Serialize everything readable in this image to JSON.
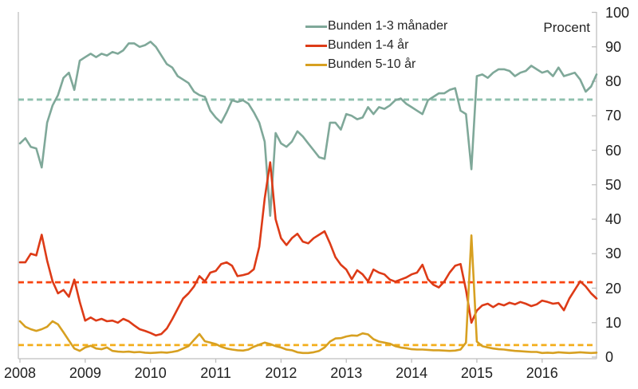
{
  "axis_label": "Procent",
  "chart_data": {
    "type": "line",
    "title": "",
    "xlabel": "",
    "ylabel": "Procent",
    "x_start": "2008-01",
    "x_end": "2016-11",
    "x_tick_labels": [
      "2008",
      "2009",
      "2010",
      "2011",
      "2012",
      "2013",
      "2014",
      "2015",
      "2016"
    ],
    "y_ticks": [
      0,
      10,
      20,
      30,
      40,
      50,
      60,
      70,
      80,
      90,
      100
    ],
    "ylim": [
      0,
      100
    ],
    "grid": false,
    "legend_position": "top-center-inside",
    "series": [
      {
        "name": "Bunden 1-3 månader",
        "color": "#7fa899",
        "values": [
          62,
          63.5,
          61,
          60.5,
          55,
          68,
          73,
          76,
          81,
          82.5,
          77.5,
          86,
          87,
          88,
          87,
          88,
          87.5,
          88.5,
          88,
          89,
          91,
          91,
          90,
          90.5,
          91.5,
          90,
          87.5,
          85,
          84,
          81.5,
          80.5,
          79.5,
          77,
          76,
          75.5,
          71.5,
          69.5,
          68,
          71,
          74.5,
          74,
          74.5,
          73.5,
          71,
          68,
          62.5,
          41,
          65,
          62,
          61,
          62.5,
          65.5,
          64,
          62,
          60,
          58,
          57.5,
          68,
          68,
          66,
          70.5,
          70,
          69,
          69.5,
          72.5,
          70.5,
          72.5,
          72,
          73,
          74.5,
          75,
          73.5,
          72.5,
          71.5,
          70.5,
          74.5,
          75.5,
          76.5,
          76.5,
          77.5,
          78,
          71.5,
          70.5,
          54.5,
          81.5,
          82,
          81,
          82.5,
          83.5,
          83.5,
          83,
          81.5,
          82.5,
          83,
          84.5,
          83.5,
          82.5,
          83,
          81.5,
          84,
          81.5,
          82,
          82.5,
          80.5,
          77,
          78.5,
          82
        ]
      },
      {
        "name": "Bunden 1-4 år",
        "color": "#dd3b17",
        "values": [
          27.5,
          27.5,
          30,
          29.5,
          35.5,
          28,
          22,
          18.5,
          19.5,
          17.5,
          22.5,
          16,
          10.6,
          11.5,
          10.6,
          11.1,
          10.4,
          10.6,
          10,
          11.1,
          10.4,
          9.2,
          8.1,
          7.6,
          7,
          6.3,
          6.7,
          8.3,
          11,
          14,
          17,
          18.5,
          20.5,
          23.5,
          22,
          24.5,
          25,
          27,
          27.5,
          26.5,
          23.5,
          23.8,
          24.2,
          25.5,
          32,
          46,
          56.5,
          40,
          34.5,
          32.5,
          34.5,
          35.8,
          33.5,
          33,
          34.5,
          35.5,
          36.5,
          33,
          29,
          26.8,
          25.4,
          22.6,
          25.2,
          24,
          22,
          25.4,
          24.5,
          24,
          22.5,
          21.9,
          22.5,
          23.1,
          24,
          24.5,
          26.8,
          22.6,
          21,
          20.2,
          21.9,
          24.5,
          26.5,
          27,
          19.5,
          10,
          13.5,
          15,
          15.5,
          14.5,
          15.5,
          15,
          15.8,
          15.3,
          16,
          15.5,
          14.8,
          15.3,
          16.4,
          16,
          15.5,
          15.7,
          13.6,
          17,
          19.5,
          22,
          20.5,
          18.5,
          17
        ]
      },
      {
        "name": "Bunden 5-10 år",
        "color": "#d7a021",
        "values": [
          10.4,
          8.8,
          8.1,
          7.6,
          8.1,
          8.8,
          10.4,
          9.5,
          7.2,
          4.8,
          2.5,
          1.8,
          2.8,
          3.3,
          2.5,
          2.3,
          2.8,
          1.8,
          1.6,
          1.5,
          1.6,
          1.4,
          1.5,
          1.3,
          1.2,
          1.3,
          1.4,
          1.3,
          1.5,
          1.8,
          2.5,
          3.2,
          5,
          6.7,
          4.6,
          4.2,
          3.8,
          3,
          2.5,
          2.2,
          2,
          1.9,
          2.2,
          3,
          3.6,
          4.2,
          3.8,
          3.2,
          2.8,
          2.2,
          2,
          1.4,
          1.2,
          1.2,
          1.4,
          1.8,
          2.8,
          4.5,
          5.4,
          5.5,
          6,
          6.3,
          6.2,
          6.9,
          6.6,
          5.2,
          4.5,
          4.2,
          3.9,
          3.2,
          2.8,
          2.6,
          2.3,
          2.2,
          2.2,
          2.1,
          2,
          2,
          1.9,
          1.8,
          1.9,
          2.2,
          4.2,
          35.3,
          4.5,
          3.2,
          2.8,
          2.5,
          2.3,
          2.2,
          2,
          1.8,
          1.7,
          1.6,
          1.5,
          1.5,
          1.2,
          1.3,
          1.2,
          1.4,
          1.3,
          1.2,
          1.3,
          1.4,
          1.3,
          1.2,
          1.3
        ]
      }
    ],
    "reference_lines": [
      {
        "series": "Bunden 1-3 månader",
        "value": 74.7,
        "color": "#8fc0ae",
        "style": "dashed"
      },
      {
        "series": "Bunden 1-4 år",
        "value": 21.7,
        "color": "#f8430f",
        "style": "dashed"
      },
      {
        "series": "Bunden 5-10 år",
        "value": 3.5,
        "color": "#f3ae1b",
        "style": "dashed"
      }
    ],
    "axis_color": "#bfbfbf",
    "tick_label_color": "#1f1f1f"
  }
}
